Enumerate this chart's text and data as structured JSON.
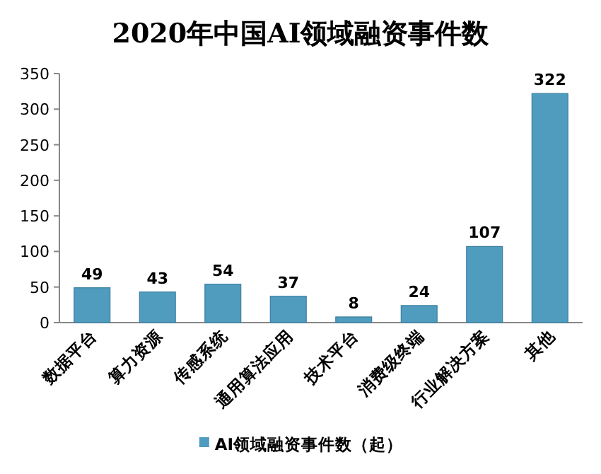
{
  "chart_data": {
    "type": "bar",
    "title": "2020年中国AI领域融资事件数",
    "categories": [
      "数据平台",
      "算力资源",
      "传感系统",
      "通用算法应用",
      "技术平台",
      "消费级终端",
      "行业解决方案",
      "其他"
    ],
    "series": [
      {
        "name": "AI领域融资事件数（起）",
        "color": "#4f9cbf",
        "values": [
          49,
          43,
          54,
          37,
          8,
          24,
          107,
          322
        ]
      }
    ],
    "ylim": [
      0,
      350
    ],
    "yticks": [
      0,
      50,
      100,
      150,
      200,
      250,
      300,
      350
    ],
    "data_labels": true,
    "legend": "bottom"
  }
}
